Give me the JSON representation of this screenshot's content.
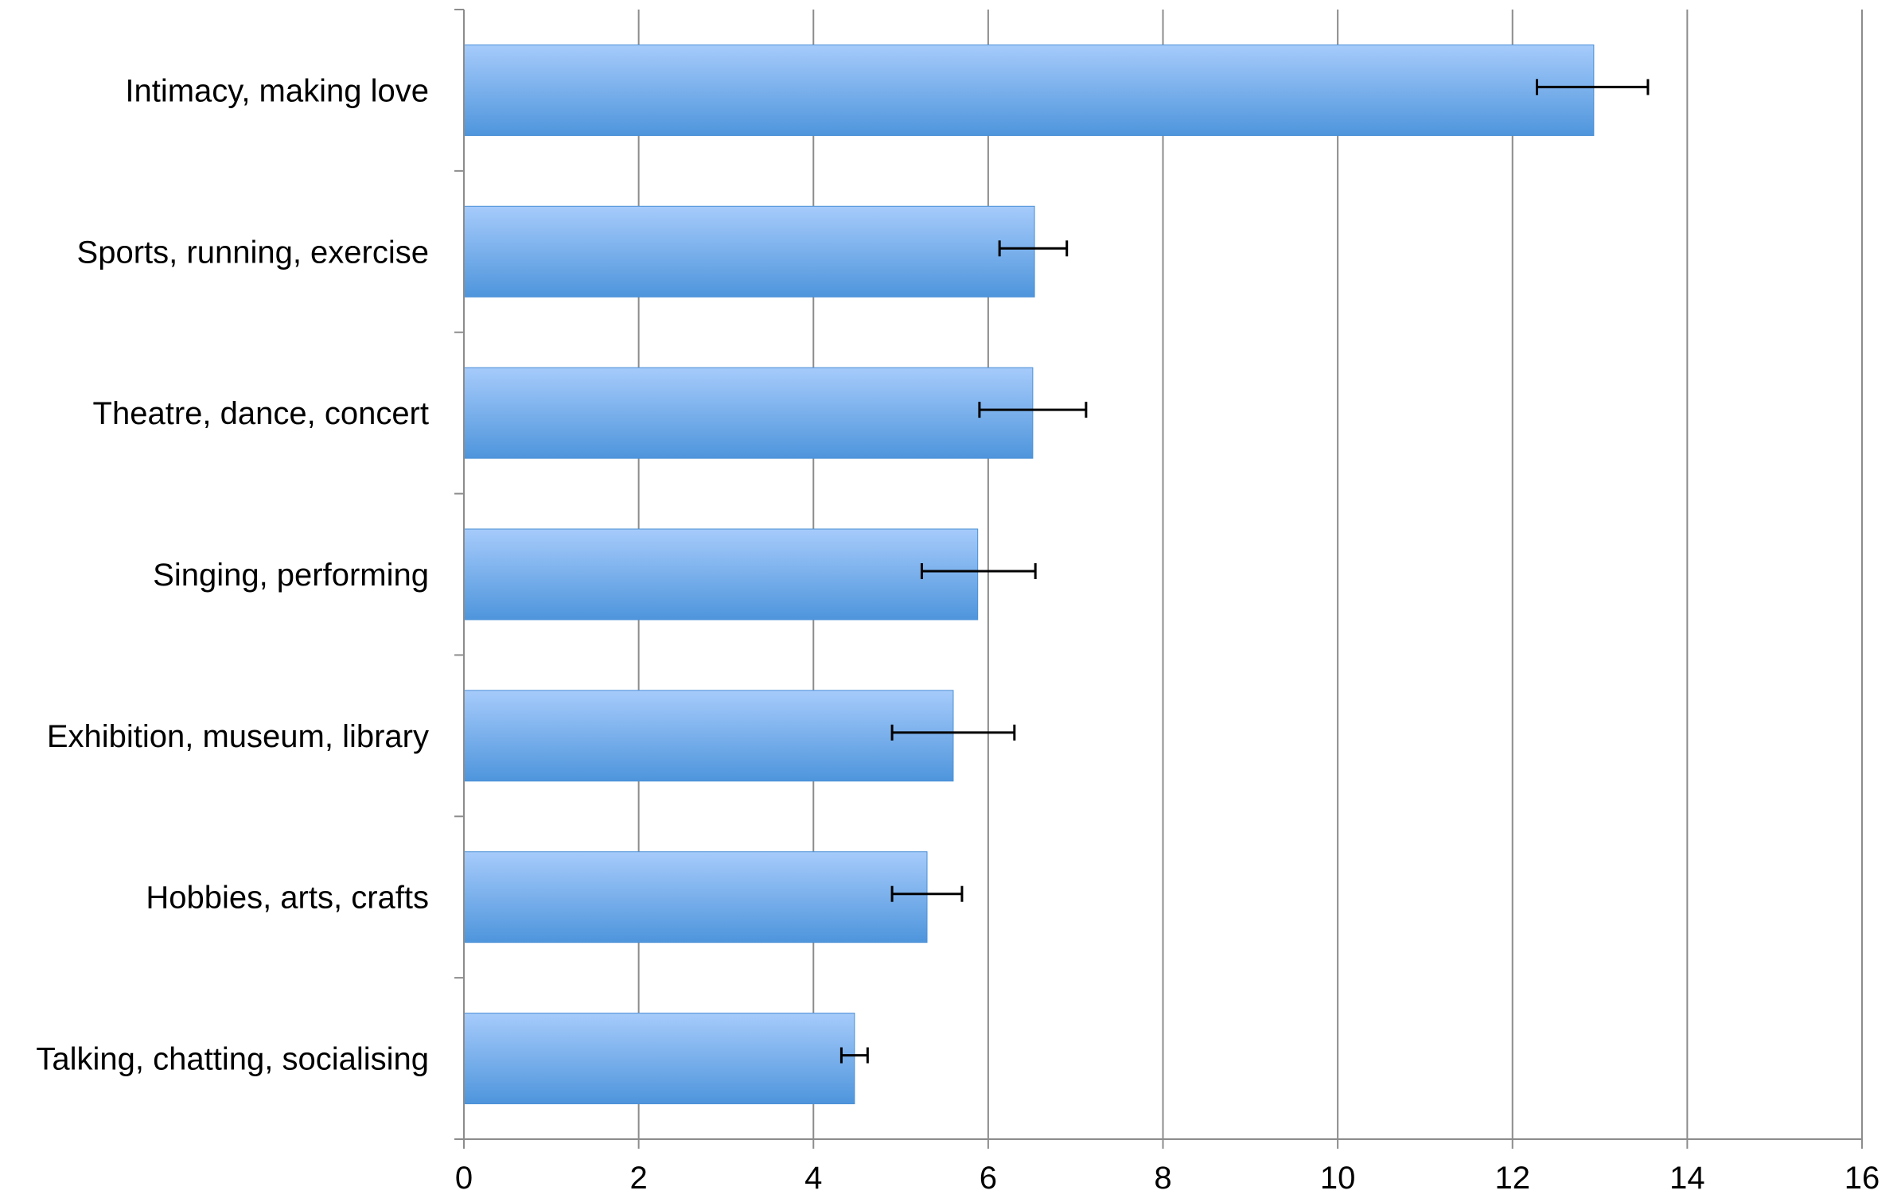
{
  "colors": {
    "bar_top": "#a6cbfb",
    "bar_bottom": "#4e95dc",
    "bar_edge": "#4a8fd6",
    "gridline": "#8c8c8c",
    "axis": "#8c8c8c",
    "error_bar": "#000000"
  },
  "chart_data": {
    "type": "bar",
    "orientation": "horizontal",
    "title": "",
    "xlabel": "",
    "ylabel": "",
    "xlim": [
      0,
      16
    ],
    "xticks": [
      0,
      2,
      4,
      6,
      8,
      10,
      12,
      14,
      16
    ],
    "grid": "vertical",
    "legend": "none",
    "categories": [
      "Intimacy, making love",
      "Sports, running, exercise",
      "Theatre, dance, concert",
      "Singing, performing",
      "Exhibition, museum, library",
      "Hobbies, arts, crafts",
      "Talking, chatting, socialising"
    ],
    "values": [
      12.93,
      6.53,
      6.51,
      5.88,
      5.6,
      5.3,
      4.47
    ],
    "error_low": [
      12.28,
      6.13,
      5.9,
      5.24,
      4.9,
      4.9,
      4.32
    ],
    "error_high": [
      13.55,
      6.9,
      7.12,
      6.54,
      6.3,
      5.7,
      4.62
    ]
  }
}
